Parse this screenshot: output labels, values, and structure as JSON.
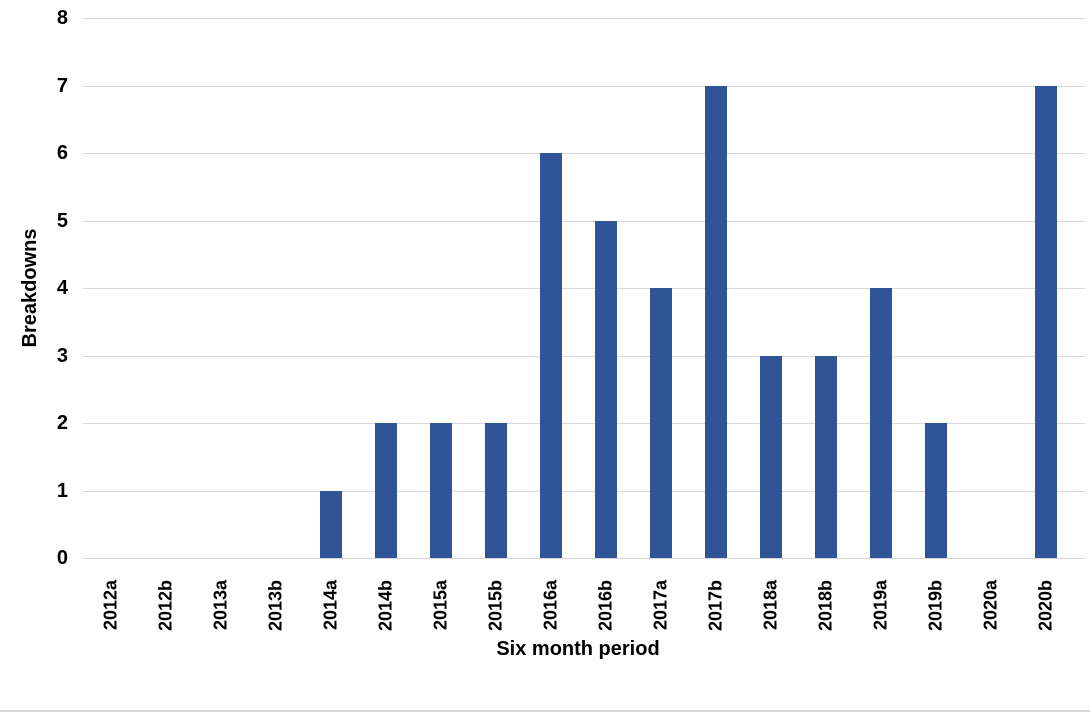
{
  "page": {
    "background_color": "#ffffff",
    "bottom_divider_color": "#d9d9d9"
  },
  "chart_data": {
    "type": "bar",
    "title": "",
    "xlabel": "Six month period",
    "ylabel": "Breakdowns",
    "categories": [
      "2012a",
      "2012b",
      "2013a",
      "2013b",
      "2014a",
      "2014b",
      "2015a",
      "2015b",
      "2016a",
      "2016b",
      "2017a",
      "2017b",
      "2018a",
      "2018b",
      "2019a",
      "2019b",
      "2020a",
      "2020b"
    ],
    "values": [
      0,
      0,
      0,
      0,
      1,
      2,
      2,
      2,
      6,
      5,
      4,
      7,
      3,
      3,
      4,
      2,
      0,
      7
    ],
    "ylim": [
      0,
      8
    ],
    "yticks": [
      0,
      1,
      2,
      3,
      4,
      5,
      6,
      7,
      8
    ],
    "grid": "horizontal",
    "legend_position": "none",
    "bar_color": "#2F5597",
    "gridline_color": "#D9D9D9",
    "axis_line_color": "#D9D9D9",
    "tick_label_color": "#000000"
  }
}
